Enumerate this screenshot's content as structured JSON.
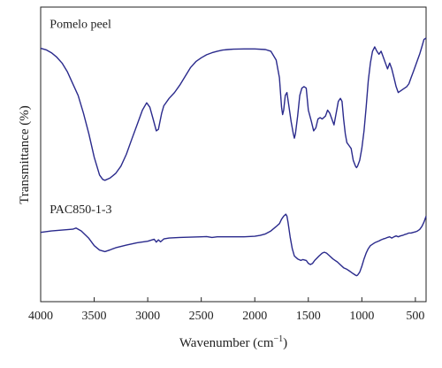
{
  "chart_data": {
    "type": "line",
    "xlabel": "Wavenumber (cm",
    "xlabel_sup": "−1",
    "xlabel_close": ")",
    "ylabel": "Transmittance (%)",
    "xlim": [
      4000,
      400
    ],
    "x_reversed": true,
    "x_ticks": [
      4000,
      3500,
      3000,
      2500,
      2000,
      1500,
      1000,
      500
    ],
    "x_tick_labels": [
      "4000",
      "3500",
      "3000",
      "2500",
      "2000",
      "1500",
      "1000",
      "500"
    ],
    "y_ticks_shown": false,
    "ylim": [
      0,
      100
    ],
    "grid": false,
    "line_color": "#2a2a8c",
    "series": [
      {
        "name": "Pomelo peel",
        "points": [
          [
            4000,
            86
          ],
          [
            3950,
            85.5
          ],
          [
            3900,
            84.5
          ],
          [
            3850,
            83
          ],
          [
            3800,
            81
          ],
          [
            3750,
            78
          ],
          [
            3700,
            74
          ],
          [
            3650,
            70
          ],
          [
            3600,
            64
          ],
          [
            3550,
            57
          ],
          [
            3500,
            49
          ],
          [
            3450,
            43
          ],
          [
            3420,
            41.5
          ],
          [
            3400,
            41.2
          ],
          [
            3350,
            42
          ],
          [
            3300,
            43.5
          ],
          [
            3250,
            46
          ],
          [
            3200,
            50
          ],
          [
            3150,
            55
          ],
          [
            3100,
            60
          ],
          [
            3050,
            65
          ],
          [
            3010,
            67.5
          ],
          [
            2980,
            66
          ],
          [
            2950,
            62
          ],
          [
            2920,
            58
          ],
          [
            2900,
            58.5
          ],
          [
            2870,
            64
          ],
          [
            2850,
            66.5
          ],
          [
            2800,
            69
          ],
          [
            2750,
            71
          ],
          [
            2700,
            73.5
          ],
          [
            2650,
            76.5
          ],
          [
            2600,
            79.5
          ],
          [
            2550,
            81.5
          ],
          [
            2500,
            82.8
          ],
          [
            2450,
            83.8
          ],
          [
            2400,
            84.5
          ],
          [
            2350,
            85
          ],
          [
            2300,
            85.4
          ],
          [
            2250,
            85.6
          ],
          [
            2200,
            85.7
          ],
          [
            2100,
            85.8
          ],
          [
            2000,
            85.8
          ],
          [
            1900,
            85.6
          ],
          [
            1850,
            85
          ],
          [
            1800,
            82
          ],
          [
            1770,
            76
          ],
          [
            1750,
            66
          ],
          [
            1740,
            63.5
          ],
          [
            1730,
            65
          ],
          [
            1715,
            70
          ],
          [
            1700,
            71
          ],
          [
            1680,
            66
          ],
          [
            1660,
            61
          ],
          [
            1640,
            57
          ],
          [
            1630,
            55.5
          ],
          [
            1620,
            57
          ],
          [
            1600,
            63
          ],
          [
            1580,
            70
          ],
          [
            1560,
            72.5
          ],
          [
            1540,
            73
          ],
          [
            1520,
            72.5
          ],
          [
            1500,
            65
          ],
          [
            1470,
            61
          ],
          [
            1450,
            58
          ],
          [
            1430,
            59
          ],
          [
            1410,
            62
          ],
          [
            1390,
            62.5
          ],
          [
            1370,
            62
          ],
          [
            1340,
            63
          ],
          [
            1320,
            65
          ],
          [
            1300,
            64
          ],
          [
            1280,
            62
          ],
          [
            1260,
            60
          ],
          [
            1240,
            64
          ],
          [
            1220,
            68
          ],
          [
            1200,
            69
          ],
          [
            1185,
            68
          ],
          [
            1170,
            62
          ],
          [
            1155,
            57
          ],
          [
            1140,
            54
          ],
          [
            1120,
            53
          ],
          [
            1100,
            52
          ],
          [
            1080,
            48
          ],
          [
            1060,
            46
          ],
          [
            1050,
            45.5
          ],
          [
            1040,
            46
          ],
          [
            1020,
            48
          ],
          [
            1000,
            52
          ],
          [
            980,
            58
          ],
          [
            960,
            66
          ],
          [
            940,
            75
          ],
          [
            920,
            81
          ],
          [
            900,
            85
          ],
          [
            880,
            86.5
          ],
          [
            860,
            85
          ],
          [
            840,
            84
          ],
          [
            820,
            85
          ],
          [
            800,
            83
          ],
          [
            780,
            81
          ],
          [
            760,
            79
          ],
          [
            740,
            81
          ],
          [
            720,
            79
          ],
          [
            700,
            76
          ],
          [
            680,
            73
          ],
          [
            660,
            71
          ],
          [
            640,
            71.5
          ],
          [
            620,
            72
          ],
          [
            600,
            72.5
          ],
          [
            580,
            73
          ],
          [
            560,
            74
          ],
          [
            540,
            76
          ],
          [
            520,
            78
          ],
          [
            500,
            80
          ],
          [
            480,
            82
          ],
          [
            460,
            84
          ],
          [
            440,
            86.5
          ],
          [
            420,
            89
          ],
          [
            400,
            89.5
          ]
        ]
      },
      {
        "name": "PAC850-1-3",
        "points": [
          [
            4000,
            23.5
          ],
          [
            3900,
            24
          ],
          [
            3800,
            24.3
          ],
          [
            3700,
            24.6
          ],
          [
            3670,
            25
          ],
          [
            3620,
            24
          ],
          [
            3550,
            21.5
          ],
          [
            3500,
            19
          ],
          [
            3450,
            17.5
          ],
          [
            3400,
            17
          ],
          [
            3350,
            17.6
          ],
          [
            3300,
            18.3
          ],
          [
            3200,
            19.2
          ],
          [
            3100,
            20
          ],
          [
            3000,
            20.5
          ],
          [
            2940,
            21.2
          ],
          [
            2920,
            20.2
          ],
          [
            2900,
            21
          ],
          [
            2880,
            20.3
          ],
          [
            2850,
            21.3
          ],
          [
            2800,
            21.6
          ],
          [
            2700,
            21.8
          ],
          [
            2600,
            21.9
          ],
          [
            2500,
            22
          ],
          [
            2450,
            22.1
          ],
          [
            2400,
            21.8
          ],
          [
            2350,
            22
          ],
          [
            2300,
            22
          ],
          [
            2200,
            22
          ],
          [
            2100,
            22
          ],
          [
            2000,
            22.2
          ],
          [
            1950,
            22.5
          ],
          [
            1900,
            23
          ],
          [
            1850,
            24
          ],
          [
            1800,
            25.5
          ],
          [
            1770,
            26.5
          ],
          [
            1750,
            28
          ],
          [
            1730,
            29
          ],
          [
            1710,
            29.7
          ],
          [
            1700,
            29
          ],
          [
            1690,
            27
          ],
          [
            1670,
            22
          ],
          [
            1650,
            18
          ],
          [
            1630,
            15.5
          ],
          [
            1600,
            14.5
          ],
          [
            1570,
            14
          ],
          [
            1550,
            14.3
          ],
          [
            1520,
            14
          ],
          [
            1500,
            13
          ],
          [
            1480,
            12.6
          ],
          [
            1460,
            13
          ],
          [
            1440,
            14
          ],
          [
            1400,
            15.5
          ],
          [
            1370,
            16.5
          ],
          [
            1350,
            16.8
          ],
          [
            1330,
            16.5
          ],
          [
            1300,
            15.5
          ],
          [
            1270,
            14.5
          ],
          [
            1250,
            14
          ],
          [
            1230,
            13.5
          ],
          [
            1200,
            12.5
          ],
          [
            1170,
            11.5
          ],
          [
            1140,
            11
          ],
          [
            1120,
            10.5
          ],
          [
            1100,
            10
          ],
          [
            1080,
            9.5
          ],
          [
            1060,
            9
          ],
          [
            1050,
            8.8
          ],
          [
            1040,
            9
          ],
          [
            1020,
            10
          ],
          [
            1000,
            12
          ],
          [
            980,
            14.5
          ],
          [
            960,
            16.5
          ],
          [
            940,
            18
          ],
          [
            920,
            19
          ],
          [
            900,
            19.5
          ],
          [
            880,
            20
          ],
          [
            860,
            20.3
          ],
          [
            840,
            20.6
          ],
          [
            820,
            21
          ],
          [
            800,
            21.3
          ],
          [
            780,
            21.5
          ],
          [
            760,
            21.8
          ],
          [
            740,
            22
          ],
          [
            720,
            21.6
          ],
          [
            700,
            22
          ],
          [
            680,
            22.3
          ],
          [
            660,
            22
          ],
          [
            640,
            22.3
          ],
          [
            620,
            22.5
          ],
          [
            600,
            22.8
          ],
          [
            580,
            23
          ],
          [
            560,
            23.3
          ],
          [
            540,
            23.3
          ],
          [
            520,
            23.5
          ],
          [
            500,
            23.7
          ],
          [
            480,
            24
          ],
          [
            460,
            24.5
          ],
          [
            440,
            25.5
          ],
          [
            420,
            27
          ],
          [
            400,
            29
          ]
        ]
      }
    ],
    "labels": [
      {
        "text": "Pomelo peel",
        "x": 3915,
        "y": 93
      },
      {
        "text": "PAC850-1-3",
        "x": 3915,
        "y": 30
      }
    ]
  }
}
